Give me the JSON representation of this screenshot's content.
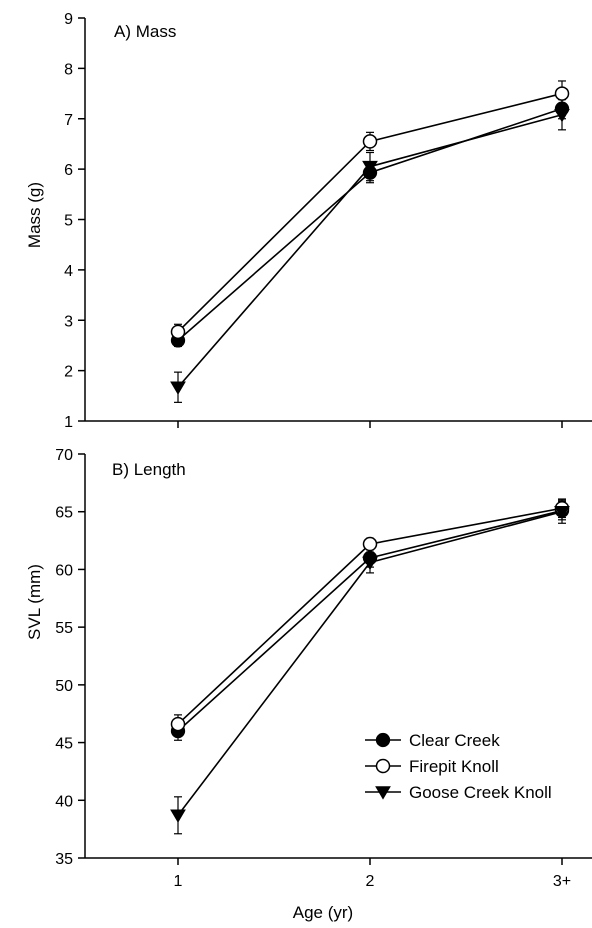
{
  "chart_data": [
    {
      "type": "line",
      "title": "A) Mass",
      "xlabel": "",
      "ylabel": "Mass (g)",
      "categories": [
        "1",
        "2",
        "3+"
      ],
      "ylim": [
        1,
        9
      ],
      "yticks": [
        1,
        2,
        3,
        4,
        5,
        6,
        7,
        8,
        9
      ],
      "series": [
        {
          "name": "Clear Creek",
          "marker": "filled-circle",
          "values": [
            2.6,
            5.93,
            7.2
          ],
          "errors": [
            0.12,
            0.2,
            0.2
          ]
        },
        {
          "name": "Firepit Knoll",
          "marker": "open-circle",
          "values": [
            2.77,
            6.55,
            7.5
          ],
          "errors": [
            0.15,
            0.18,
            0.25
          ]
        },
        {
          "name": "Goose Creek Knoll",
          "marker": "filled-triangle-down",
          "values": [
            1.67,
            6.05,
            7.08
          ],
          "errors": [
            0.3,
            0.28,
            0.3
          ]
        }
      ]
    },
    {
      "type": "line",
      "title": "B) Length",
      "xlabel": "Age (yr)",
      "ylabel": "SVL (mm)",
      "categories": [
        "1",
        "2",
        "3+"
      ],
      "ylim": [
        35,
        70
      ],
      "yticks": [
        35,
        40,
        45,
        50,
        55,
        60,
        65,
        70
      ],
      "legend": "bottom-right",
      "series": [
        {
          "name": "Clear Creek",
          "marker": "filled-circle",
          "values": [
            46.0,
            61.0,
            65.1
          ],
          "errors": [
            0.8,
            0.8,
            0.8
          ]
        },
        {
          "name": "Firepit Knoll",
          "marker": "open-circle",
          "values": [
            46.6,
            62.2,
            65.3
          ],
          "errors": [
            0.8,
            0.5,
            0.8
          ]
        },
        {
          "name": "Goose Creek Knoll",
          "marker": "filled-triangle-down",
          "values": [
            38.7,
            60.6,
            65.0
          ],
          "errors": [
            1.6,
            0.9,
            1.0
          ]
        }
      ]
    }
  ]
}
